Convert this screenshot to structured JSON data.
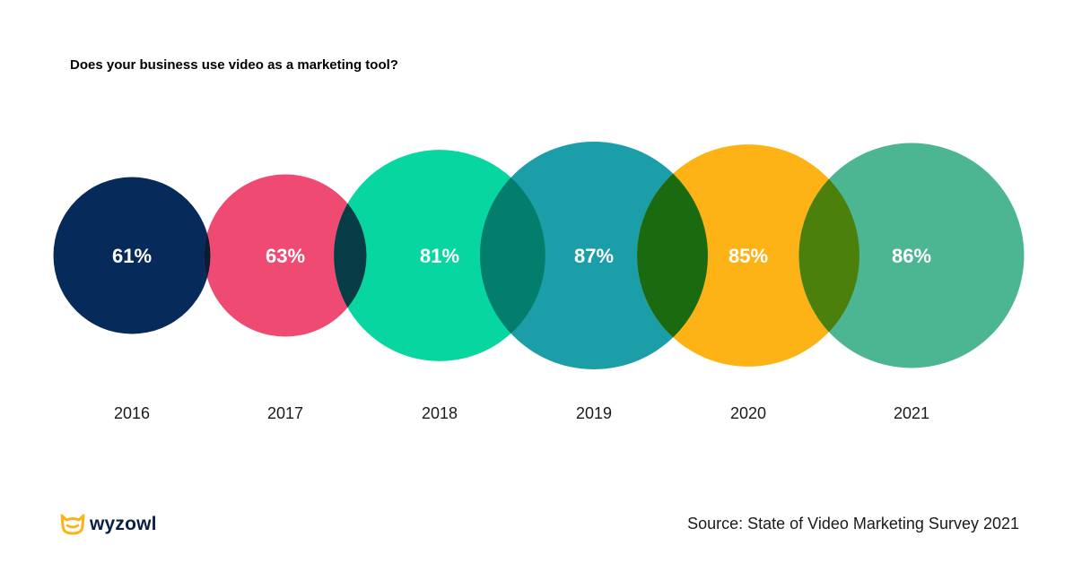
{
  "chart_data": {
    "type": "bubble",
    "title": "Does your business use video as a marketing tool?",
    "categories": [
      "2016",
      "2017",
      "2018",
      "2019",
      "2020",
      "2021"
    ],
    "values": [
      61,
      63,
      81,
      87,
      85,
      86
    ],
    "labels": [
      "61%",
      "63%",
      "81%",
      "87%",
      "85%",
      "86%"
    ],
    "colors": [
      "#062a5a",
      "#ee4a72",
      "#08d6a0",
      "#1c9ea9",
      "#fdb316",
      "#4cb592"
    ],
    "overlap_colors": [
      "#0c1a33",
      "#063c46",
      "#047e6c",
      "#1a6b10",
      "#4b800c"
    ]
  },
  "source": "Source: State of Video Marketing Survey 2021",
  "logo": {
    "text": "wyzowl",
    "icon": "owl-icon",
    "color": "#fdb316"
  }
}
